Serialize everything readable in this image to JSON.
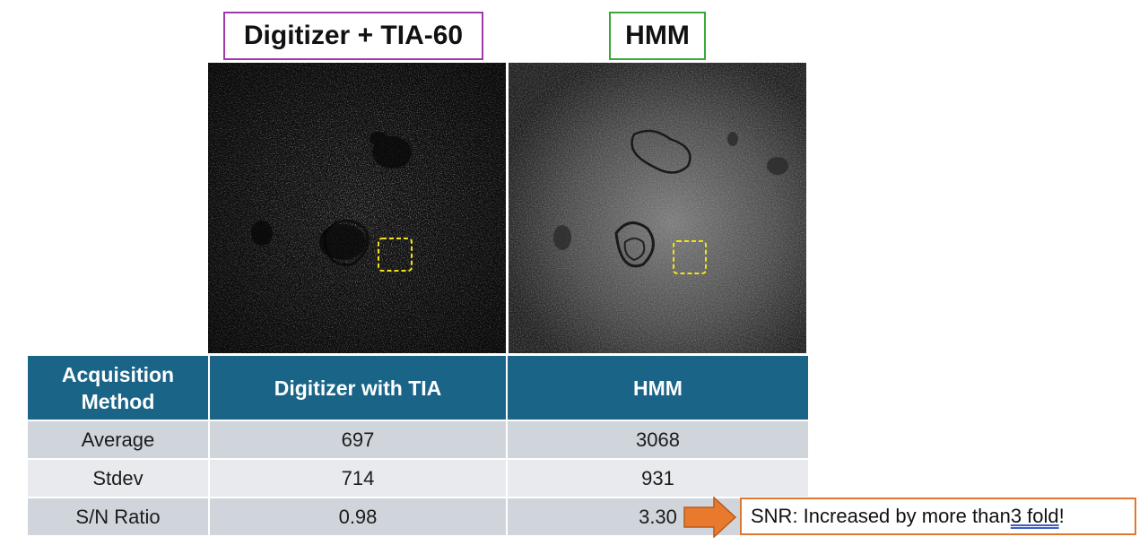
{
  "labels": {
    "left": "Digitizer + TIA-60",
    "right": "HMM"
  },
  "colors": {
    "left_label_border": "#a03aa8",
    "right_label_border": "#3aa83a",
    "header_bg": "#1a6587",
    "roi_box": "#f2e318",
    "snr_value": "#c0201d",
    "callout_border": "#e07830",
    "arrow_fill": "#e8792d"
  },
  "table": {
    "headers": [
      "Acquisition Method",
      "Digitizer with TIA",
      "HMM"
    ],
    "rows": [
      {
        "label": "Average",
        "digitizer": "697",
        "hmm": "3068"
      },
      {
        "label": "Stdev",
        "digitizer": "714",
        "hmm": "931"
      },
      {
        "label": "S/N Ratio",
        "digitizer": "0.98",
        "hmm": "3.30"
      }
    ]
  },
  "callout": {
    "prefix": "SNR: Increased by more than ",
    "underlined": "3 fold",
    "suffix": " !"
  }
}
